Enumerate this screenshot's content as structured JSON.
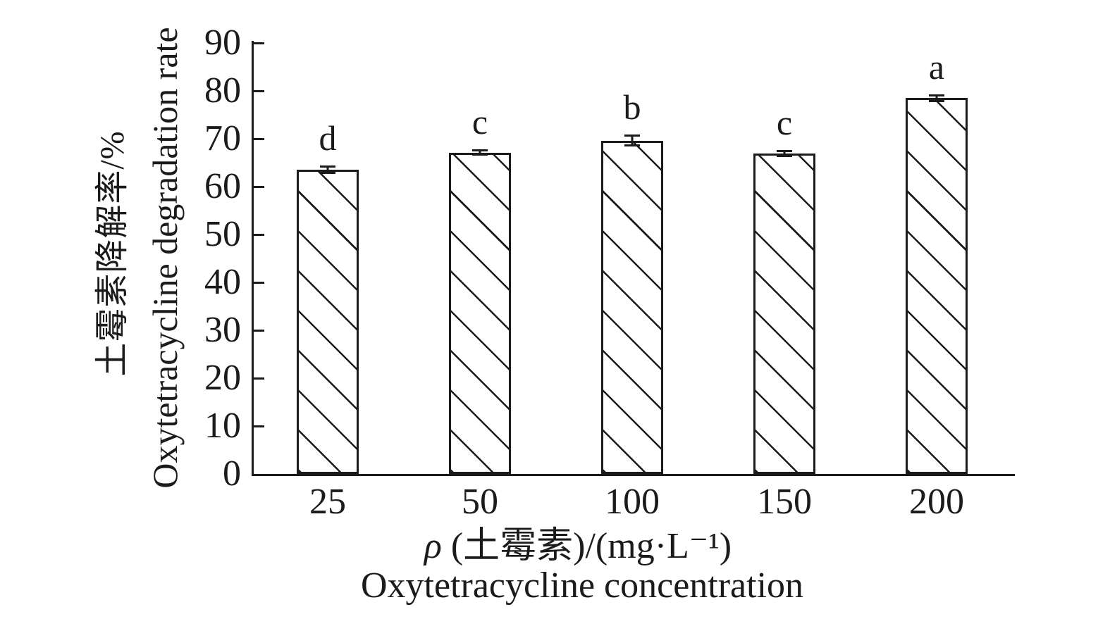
{
  "figure": {
    "background": "#ffffff",
    "ink_color": "#1b1b1b"
  },
  "chart_data": {
    "type": "bar",
    "title": "",
    "categories": [
      "25",
      "50",
      "100",
      "150",
      "200"
    ],
    "values": [
      63.5,
      67.1,
      69.6,
      66.9,
      78.5
    ],
    "error_bars": [
      0.9,
      0.7,
      1.25,
      0.7,
      0.8
    ],
    "significance_letters": [
      "d",
      "c",
      "b",
      "c",
      "a"
    ],
    "ylabel_chinese": "土霉素降解率/%",
    "ylabel_english": "Oxytetracycline degradation rate",
    "xlabel_symbol": "ρ",
    "xlabel_formula_rest": " (土霉素)/(mg·L⁻¹)",
    "xlabel_english": "Oxytetracycline concentration",
    "ylim": [
      0,
      90
    ],
    "ytick_interval": 10,
    "yticks": [
      "0",
      "10",
      "20",
      "30",
      "40",
      "50",
      "60",
      "70",
      "80",
      "90"
    ],
    "grid": "off",
    "legend": "none",
    "bar_style": {
      "fill": "#ffffff",
      "hatch": "backslash-diagonal",
      "border_color": "#1b1b1b"
    }
  }
}
